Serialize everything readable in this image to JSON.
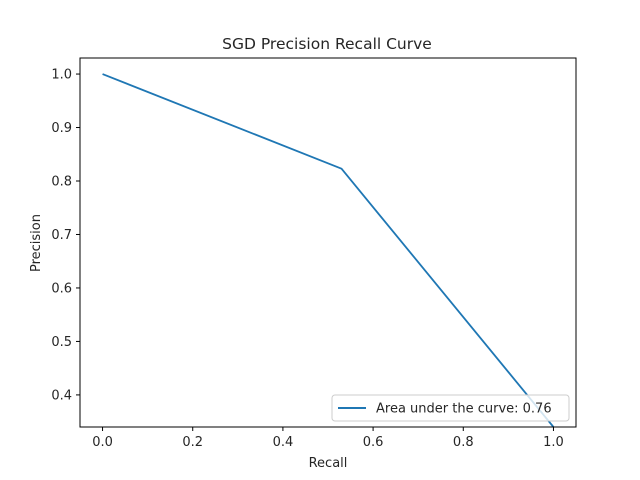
{
  "chart_data": {
    "type": "line",
    "title": "SGD Precision Recall Curve",
    "xlabel": "Recall",
    "ylabel": "Precision",
    "xlim": [
      -0.05,
      1.05
    ],
    "ylim": [
      0.34,
      1.03
    ],
    "xticks": [
      0.0,
      0.2,
      0.4,
      0.6,
      0.8,
      1.0
    ],
    "xtick_labels": [
      "0.0",
      "0.2",
      "0.4",
      "0.6",
      "0.8",
      "1.0"
    ],
    "yticks": [
      0.4,
      0.5,
      0.6,
      0.7,
      0.8,
      0.9,
      1.0
    ],
    "ytick_labels": [
      "0.4",
      "0.5",
      "0.6",
      "0.7",
      "0.8",
      "0.9",
      "1.0"
    ],
    "grid": false,
    "legend_position": "lower-right",
    "series": [
      {
        "name": "Area under the curve: 0.76",
        "color": "#1f77b4",
        "x": [
          0.0,
          0.53,
          1.0
        ],
        "y": [
          1.0,
          0.823,
          0.34
        ]
      }
    ]
  }
}
